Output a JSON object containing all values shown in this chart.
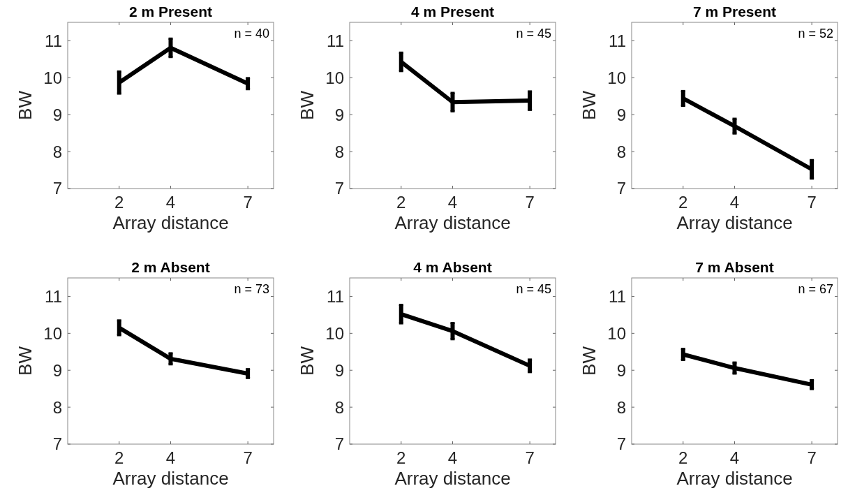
{
  "chart_data": [
    {
      "type": "line",
      "title": "2 m Present",
      "xlabel": "Array distance",
      "ylabel": "BW",
      "x": [
        2,
        4,
        7
      ],
      "xlim": [
        0,
        8
      ],
      "xticks": [
        2,
        4,
        7
      ],
      "ylim": [
        7,
        11.5
      ],
      "yticks": [
        7,
        8,
        9,
        10,
        11
      ],
      "annotations": [
        "n = 40"
      ],
      "series": [
        {
          "color": "#000000",
          "values": [
            9.87,
            10.81,
            9.84
          ],
          "errors": [
            0.3,
            0.25,
            0.15
          ]
        }
      ]
    },
    {
      "type": "line",
      "title": "4 m Present",
      "xlabel": "Array distance",
      "ylabel": "BW",
      "x": [
        2,
        4,
        7
      ],
      "xlim": [
        0,
        8
      ],
      "xticks": [
        2,
        4,
        7
      ],
      "ylim": [
        7,
        11.5
      ],
      "yticks": [
        7,
        8,
        9,
        10,
        11
      ],
      "annotations": [
        "n = 45"
      ],
      "series": [
        {
          "color": "#000000",
          "values": [
            10.43,
            9.34,
            9.38
          ],
          "errors": [
            0.25,
            0.25,
            0.25
          ]
        }
      ]
    },
    {
      "type": "line",
      "title": "7 m Present",
      "xlabel": "Array distance",
      "ylabel": "BW",
      "x": [
        2,
        4,
        7
      ],
      "xlim": [
        0,
        8
      ],
      "xticks": [
        2,
        4,
        7
      ],
      "ylim": [
        7,
        11.5
      ],
      "yticks": [
        7,
        8,
        9,
        10,
        11
      ],
      "annotations": [
        "n = 52"
      ],
      "series": [
        {
          "color": "#000000",
          "values": [
            9.44,
            8.69,
            7.52
          ],
          "errors": [
            0.2,
            0.2,
            0.25
          ]
        }
      ]
    },
    {
      "type": "line",
      "title": "2 m Absent",
      "xlabel": "Array distance",
      "ylabel": "BW",
      "x": [
        2,
        4,
        7
      ],
      "xlim": [
        0,
        8
      ],
      "xticks": [
        2,
        4,
        7
      ],
      "ylim": [
        7,
        11.5
      ],
      "yticks": [
        7,
        8,
        9,
        10,
        11
      ],
      "annotations": [
        "n = 73"
      ],
      "series": [
        {
          "color": "#000000",
          "values": [
            10.15,
            9.31,
            8.91
          ],
          "errors": [
            0.2,
            0.15,
            0.12
          ]
        }
      ]
    },
    {
      "type": "line",
      "title": "4 m Absent",
      "xlabel": "Array distance",
      "ylabel": "BW",
      "x": [
        2,
        4,
        7
      ],
      "xlim": [
        0,
        8
      ],
      "xticks": [
        2,
        4,
        7
      ],
      "ylim": [
        7,
        11.5
      ],
      "yticks": [
        7,
        8,
        9,
        10,
        11
      ],
      "annotations": [
        "n = 45"
      ],
      "series": [
        {
          "color": "#000000",
          "values": [
            10.52,
            10.06,
            9.12
          ],
          "errors": [
            0.25,
            0.22,
            0.17
          ]
        }
      ]
    },
    {
      "type": "line",
      "title": "7 m Absent",
      "xlabel": "Array distance",
      "ylabel": "BW",
      "x": [
        2,
        4,
        7
      ],
      "xlim": [
        0,
        8
      ],
      "xticks": [
        2,
        4,
        7
      ],
      "ylim": [
        7,
        11.5
      ],
      "yticks": [
        7,
        8,
        9,
        10,
        11
      ],
      "annotations": [
        "n = 67"
      ],
      "series": [
        {
          "color": "#000000",
          "values": [
            9.43,
            9.06,
            8.61
          ],
          "errors": [
            0.15,
            0.15,
            0.12
          ]
        }
      ]
    }
  ]
}
